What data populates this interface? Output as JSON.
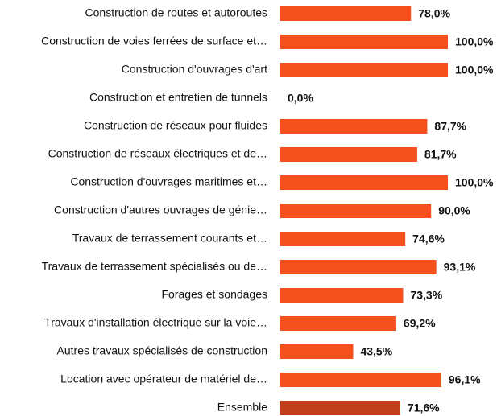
{
  "chart_data": {
    "type": "barh",
    "categories": [
      "Construction de routes et autoroutes",
      "Construction de voies ferrées de surface et…",
      "Construction d'ouvrages d'art",
      "Construction et entretien de tunnels",
      "Construction de réseaux pour fluides",
      "Construction de réseaux électriques et de…",
      "Construction d'ouvrages maritimes et…",
      "Construction d'autres ouvrages de génie…",
      "Travaux de terrassement courants et…",
      "Travaux de terrassement spécialisés ou de…",
      "Forages et sondages",
      "Travaux d'installation électrique sur la voie…",
      "Autres travaux spécialisés de construction",
      "Location avec opérateur de matériel de…",
      "Ensemble"
    ],
    "values": [
      78.0,
      100.0,
      100.0,
      0.0,
      87.7,
      81.7,
      100.0,
      90.0,
      74.6,
      93.1,
      73.3,
      69.2,
      43.5,
      96.1,
      71.6
    ],
    "value_labels": [
      "78,0%",
      "100,0%",
      "100,0%",
      "0,0%",
      "87,7%",
      "81,7%",
      "100,0%",
      "90,0%",
      "74,6%",
      "93,1%",
      "73,3%",
      "69,2%",
      "43,5%",
      "96,1%",
      "71,6%"
    ],
    "colors": [
      "#f4511e",
      "#f4511e",
      "#f4511e",
      "#f4511e",
      "#f4511e",
      "#f4511e",
      "#f4511e",
      "#f4511e",
      "#f4511e",
      "#f4511e",
      "#f4511e",
      "#f4511e",
      "#f4511e",
      "#f4511e",
      "#c1401b"
    ],
    "xlim": [
      0,
      100
    ]
  }
}
